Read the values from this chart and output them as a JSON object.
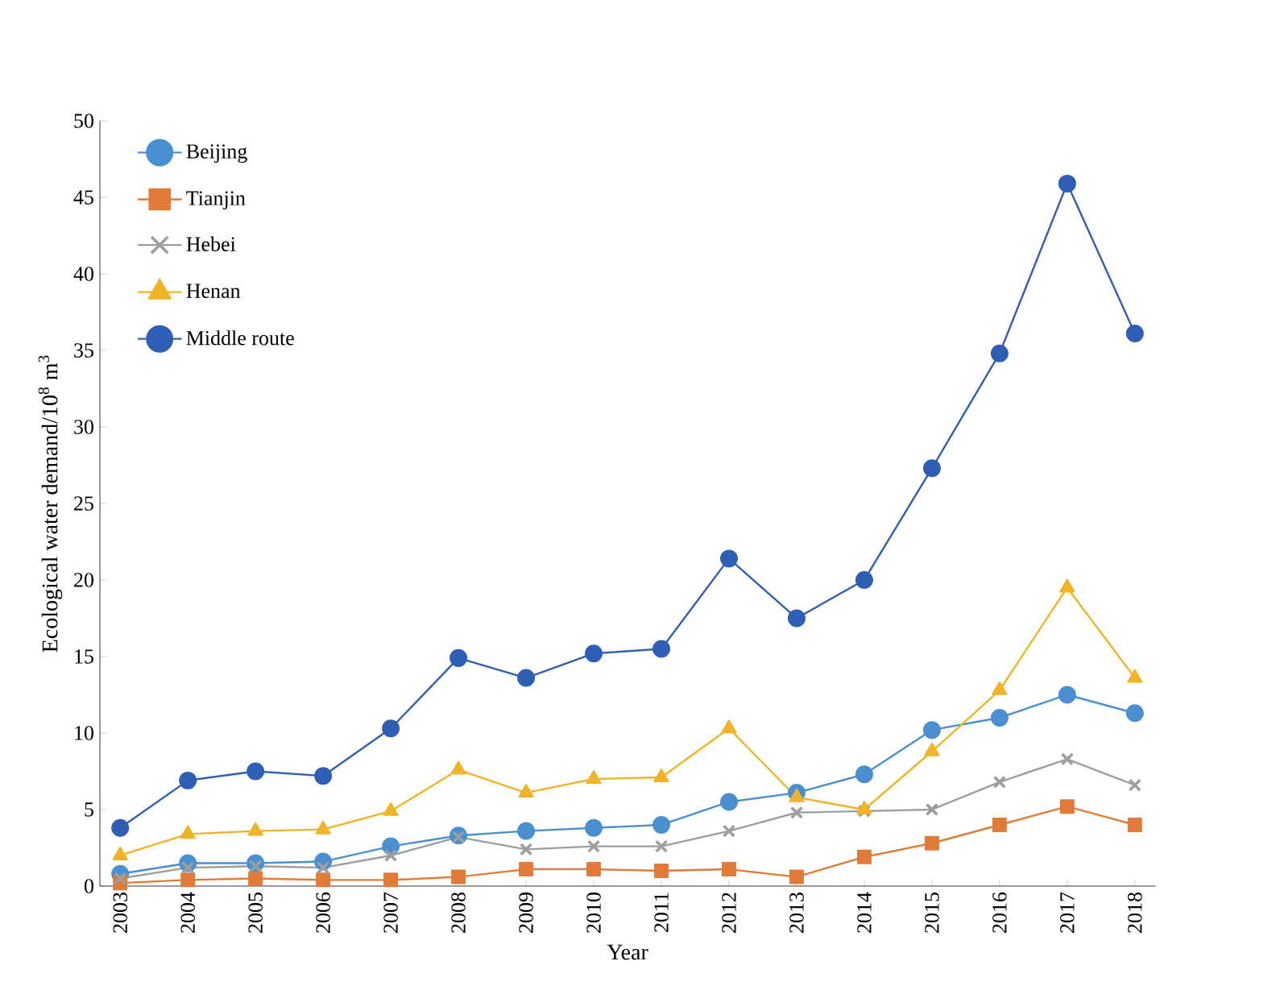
{
  "chart_data": {
    "type": "line",
    "xlabel": "Year",
    "ylabel": "Ecological water demand/10$^{8}$ m$^{3}$",
    "categories": [
      "2003",
      "2004",
      "2005",
      "2006",
      "2007",
      "2008",
      "2009",
      "2010",
      "2011",
      "2012",
      "2013",
      "2014",
      "2015",
      "2016",
      "2017",
      "2018"
    ],
    "ylim": [
      0,
      50
    ],
    "yticks": [
      0,
      5,
      10,
      15,
      20,
      25,
      30,
      35,
      40,
      45,
      50
    ],
    "grid": false,
    "legend": "top left",
    "line_style": "solid",
    "series": [
      {
        "name": "Beijing",
        "color": "#4a90d0",
        "marker": "circle",
        "values": [
          0.8,
          1.5,
          1.5,
          1.6,
          2.6,
          3.3,
          3.6,
          3.8,
          4.0,
          5.5,
          6.1,
          7.3,
          10.2,
          11.0,
          12.5,
          11.3
        ]
      },
      {
        "name": "Tianjin",
        "color": "#e07b39",
        "marker": "square",
        "values": [
          0.2,
          0.4,
          0.5,
          0.4,
          0.4,
          0.6,
          1.1,
          1.1,
          1.0,
          1.1,
          0.6,
          1.9,
          2.8,
          4.0,
          5.2,
          4.0
        ]
      },
      {
        "name": "Hebei",
        "color": "#9e9e9e",
        "marker": "cross",
        "values": [
          0.5,
          1.2,
          1.3,
          1.2,
          2.0,
          3.2,
          2.4,
          2.6,
          2.6,
          3.6,
          4.8,
          4.9,
          5.0,
          6.8,
          8.3,
          6.6
        ]
      },
      {
        "name": "Henan",
        "color": "#f0b429",
        "marker": "triangle",
        "values": [
          2.0,
          3.4,
          3.6,
          3.7,
          4.9,
          7.6,
          6.1,
          7.0,
          7.1,
          10.3,
          5.8,
          5.0,
          8.8,
          12.8,
          19.5,
          13.6
        ]
      },
      {
        "name": "Middle route",
        "color": "#2f5fb5",
        "marker": "circle",
        "values": [
          3.8,
          6.9,
          7.5,
          7.2,
          10.3,
          14.9,
          13.6,
          15.2,
          15.5,
          21.4,
          17.5,
          20.0,
          27.3,
          34.8,
          45.9,
          36.1
        ]
      }
    ]
  }
}
